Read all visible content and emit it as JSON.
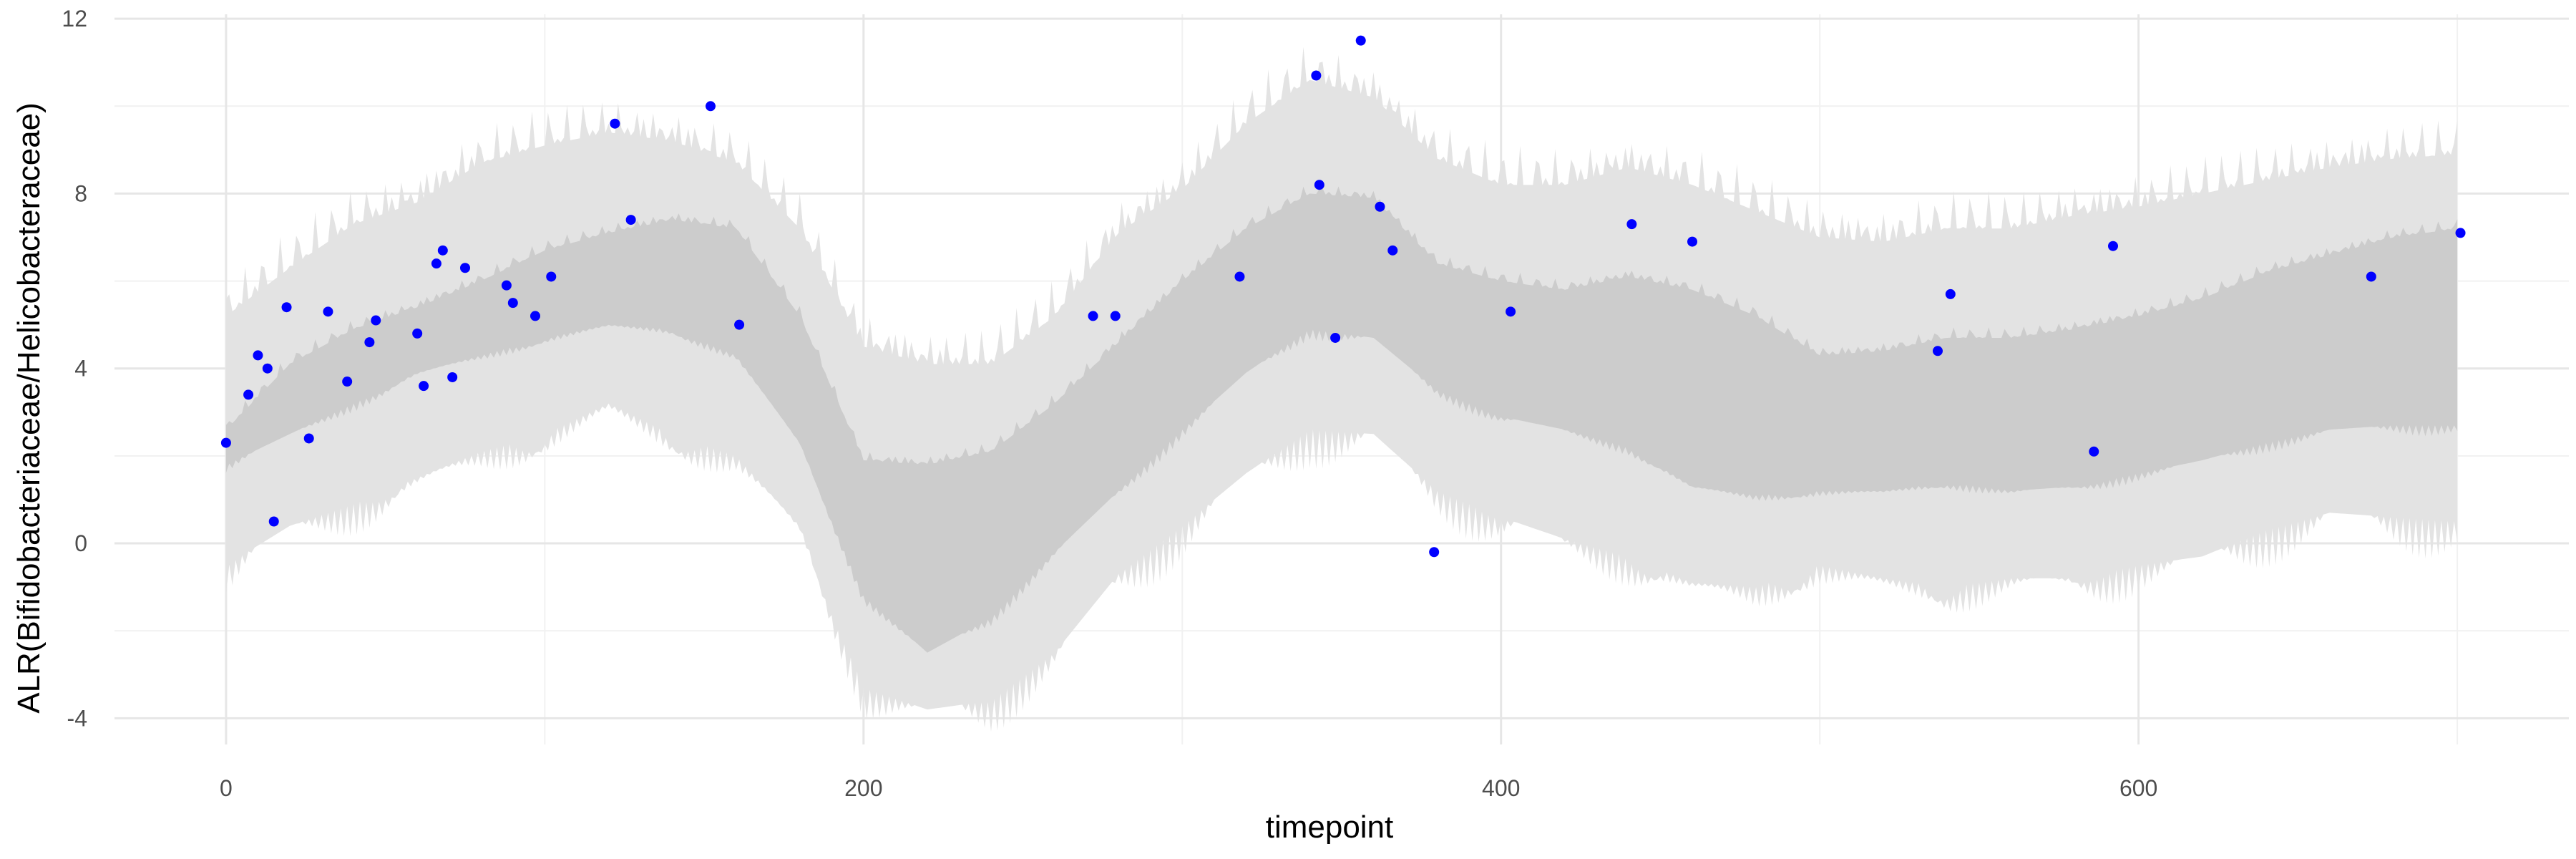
{
  "chart_data": {
    "type": "scatter",
    "title": "",
    "xlabel": "timepoint",
    "ylabel": "ALR(Bifidobacteriaceae/Helicobacteraceae)",
    "xlim": [
      -35,
      735
    ],
    "ylim": [
      -4.6,
      12.1
    ],
    "x_ticks": [
      0,
      200,
      400,
      600
    ],
    "x_tick_labels": [
      "0",
      "200",
      "400",
      "600"
    ],
    "y_ticks": [
      -4,
      0,
      4,
      8,
      12
    ],
    "y_tick_labels": [
      "-4",
      "0",
      "4",
      "8",
      "12"
    ],
    "grid": true,
    "colors": {
      "points": "#0000ff",
      "inner_band": "#cccccc",
      "outer_band": "#e3e3e3",
      "grid_major": "#e6e6e6",
      "grid_minor": "#f1f1f1"
    },
    "bands": {
      "x": [
        0,
        20,
        40,
        60,
        80,
        100,
        120,
        140,
        160,
        180,
        200,
        220,
        240,
        260,
        280,
        300,
        320,
        340,
        360,
        380,
        400,
        420,
        440,
        460,
        480,
        500,
        520,
        540,
        560,
        580,
        600,
        620,
        640,
        660,
        680,
        700
      ],
      "inner_lower": [
        1.8,
        2.5,
        3.2,
        3.9,
        4.3,
        4.7,
        5.0,
        4.9,
        4.3,
        2.3,
        -1.2,
        -2.5,
        -1.7,
        -0.2,
        1.2,
        2.6,
        3.9,
        4.9,
        4.7,
        3.5,
        2.9,
        2.6,
        2.2,
        1.3,
        1.1,
        1.2,
        1.2,
        1.4,
        1.2,
        1.3,
        1.6,
        1.9,
        2.3,
        2.6,
        2.7,
        2.7
      ],
      "inner_upper": [
        2.6,
        4.1,
        4.9,
        5.4,
        6.0,
        6.7,
        7.1,
        7.4,
        7.2,
        5.2,
        1.9,
        1.8,
        2.1,
        3.2,
        4.6,
        6.0,
        7.2,
        8.0,
        7.9,
        6.4,
        6.0,
        5.8,
        6.1,
        5.8,
        5.2,
        4.3,
        4.4,
        4.7,
        4.7,
        4.9,
        5.2,
        5.6,
        6.2,
        6.6,
        7.0,
        7.2
      ],
      "outer_lower": [
        -0.5,
        0.4,
        0.9,
        1.5,
        2.1,
        2.5,
        3.2,
        2.5,
        2.0,
        0.4,
        -3.3,
        -3.8,
        -3.6,
        -2.5,
        -0.7,
        0.4,
        1.6,
        2.6,
        2.5,
        1.2,
        0.6,
        0.1,
        -0.3,
        -0.9,
        -1.0,
        -0.5,
        -0.8,
        -1.0,
        -0.8,
        -0.8,
        -0.5,
        -0.3,
        0.3,
        0.7,
        0.6,
        0.5
      ],
      "outer_upper": [
        5.2,
        6.3,
        7.3,
        7.8,
        8.7,
        9.1,
        9.4,
        9.2,
        8.7,
        7.2,
        4.5,
        4.1,
        4.1,
        5.2,
        7.1,
        8.1,
        9.6,
        10.6,
        10.2,
        8.8,
        8.2,
        8.2,
        8.6,
        8.2,
        7.6,
        7.0,
        6.9,
        7.2,
        7.2,
        7.5,
        7.7,
        8.0,
        8.3,
        8.6,
        8.8,
        8.9
      ]
    },
    "points": [
      {
        "x": 0,
        "y": 2.3
      },
      {
        "x": 7,
        "y": 3.4
      },
      {
        "x": 10,
        "y": 4.3
      },
      {
        "x": 13,
        "y": 4.0
      },
      {
        "x": 15,
        "y": 0.5
      },
      {
        "x": 19,
        "y": 5.4
      },
      {
        "x": 26,
        "y": 2.4
      },
      {
        "x": 32,
        "y": 5.3
      },
      {
        "x": 38,
        "y": 3.7
      },
      {
        "x": 45,
        "y": 4.6
      },
      {
        "x": 47,
        "y": 5.1
      },
      {
        "x": 60,
        "y": 4.8
      },
      {
        "x": 62,
        "y": 3.6
      },
      {
        "x": 66,
        "y": 6.4
      },
      {
        "x": 68,
        "y": 6.7
      },
      {
        "x": 71,
        "y": 3.8
      },
      {
        "x": 75,
        "y": 6.3
      },
      {
        "x": 88,
        "y": 5.9
      },
      {
        "x": 90,
        "y": 5.5
      },
      {
        "x": 97,
        "y": 5.2
      },
      {
        "x": 102,
        "y": 6.1
      },
      {
        "x": 122,
        "y": 9.6
      },
      {
        "x": 127,
        "y": 7.4
      },
      {
        "x": 152,
        "y": 10.0
      },
      {
        "x": 161,
        "y": 5.0
      },
      {
        "x": 272,
        "y": 5.2
      },
      {
        "x": 279,
        "y": 5.2
      },
      {
        "x": 318,
        "y": 6.1
      },
      {
        "x": 342,
        "y": 10.7
      },
      {
        "x": 343,
        "y": 8.2
      },
      {
        "x": 348,
        "y": 4.7
      },
      {
        "x": 356,
        "y": 11.5
      },
      {
        "x": 362,
        "y": 7.7
      },
      {
        "x": 366,
        "y": 6.7
      },
      {
        "x": 379,
        "y": -0.2
      },
      {
        "x": 403,
        "y": 5.3
      },
      {
        "x": 441,
        "y": 7.3
      },
      {
        "x": 460,
        "y": 6.9
      },
      {
        "x": 537,
        "y": 4.4
      },
      {
        "x": 541,
        "y": 5.7
      },
      {
        "x": 586,
        "y": 2.1
      },
      {
        "x": 592,
        "y": 6.8
      },
      {
        "x": 673,
        "y": 6.1
      },
      {
        "x": 701,
        "y": 7.1
      }
    ]
  }
}
